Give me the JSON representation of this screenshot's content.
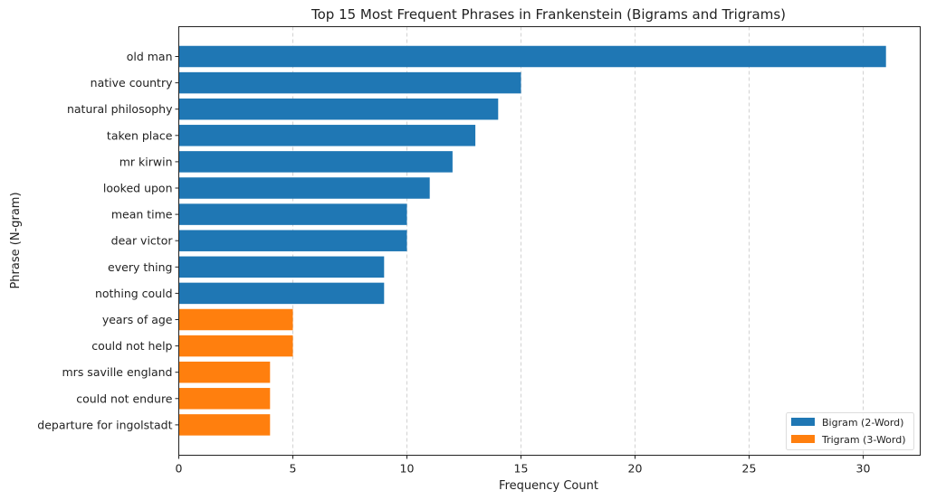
{
  "chart_data": {
    "type": "bar",
    "orientation": "horizontal",
    "title": "Top 15 Most Frequent Phrases in Frankenstein (Bigrams and Trigrams)",
    "xlabel": "Frequency Count",
    "ylabel": "Phrase (N-gram)",
    "xlim": [
      0,
      32.5
    ],
    "xticks": [
      0,
      5,
      10,
      15,
      20,
      25,
      30
    ],
    "xtick_labels": [
      "0",
      "5",
      "10",
      "15",
      "20",
      "25",
      "30"
    ],
    "grid": "x-dashed",
    "legend_position": "bottom-right",
    "categories": [
      "old man",
      "native country",
      "natural philosophy",
      "taken place",
      "mr kirwin",
      "looked upon",
      "mean time",
      "dear victor",
      "every thing",
      "nothing could",
      "years of age",
      "could not help",
      "mrs saville england",
      "could not endure",
      "departure for ingolstadt"
    ],
    "values": [
      31,
      15,
      14,
      13,
      12,
      11,
      10,
      10,
      9,
      9,
      5,
      5,
      4,
      4,
      4
    ],
    "groups": [
      "bigram",
      "bigram",
      "bigram",
      "bigram",
      "bigram",
      "bigram",
      "bigram",
      "bigram",
      "bigram",
      "bigram",
      "trigram",
      "trigram",
      "trigram",
      "trigram",
      "trigram"
    ],
    "series": [
      {
        "key": "bigram",
        "name": "Bigram (2-Word)",
        "color": "#1f77b4"
      },
      {
        "key": "trigram",
        "name": "Trigram (3-Word)",
        "color": "#ff7f0e"
      }
    ]
  }
}
